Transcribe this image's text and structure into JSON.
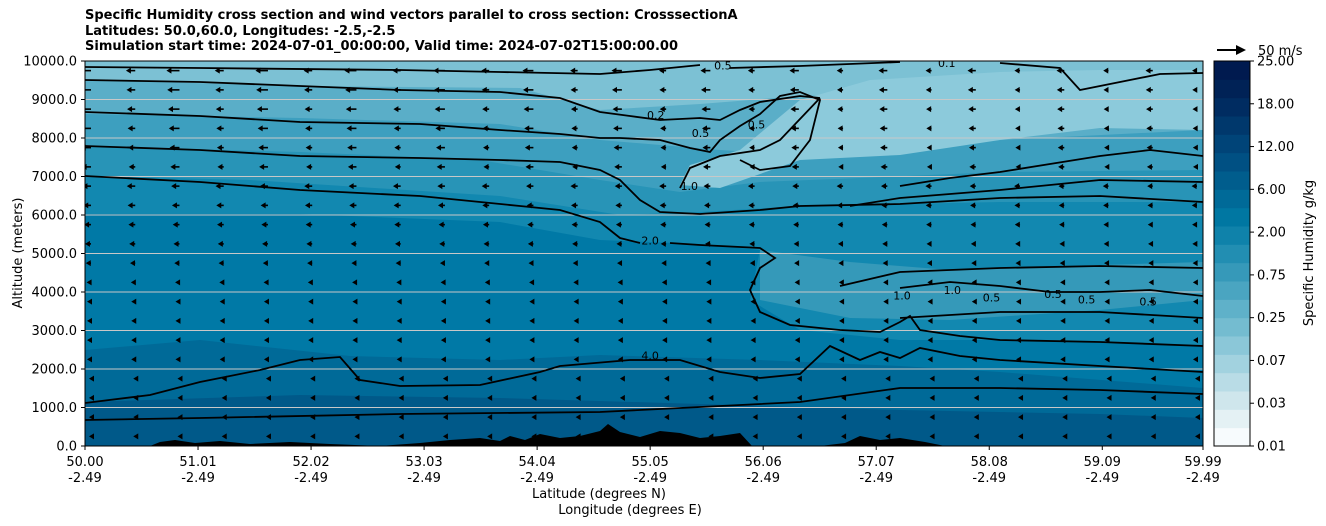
{
  "title_lines": [
    "Specific Humidity cross section and wind vectors parallel to cross section: CrosssectionA",
    "Latitudes: 50.0,60.0, Longitudes: -2.5,-2.5",
    "Simulation start time: 2024-07-01_00:00:00, Valid time: 2024-07-02T15:00:00.00"
  ],
  "chart_data": {
    "type": "heatmap",
    "ylabel": "Altitude (meters)",
    "xlabel_lines": [
      "Latitude (degrees N)",
      "Longitude (degrees E)"
    ],
    "ylim": [
      0,
      10000
    ],
    "xlim": [
      50.0,
      59.99
    ],
    "y_ticks": [
      "0.0",
      "1000.0",
      "2000.0",
      "3000.0",
      "4000.0",
      "5000.0",
      "6000.0",
      "7000.0",
      "8000.0",
      "9000.0",
      "10000.0"
    ],
    "y_tick_values": [
      0,
      1000,
      2000,
      3000,
      4000,
      5000,
      6000,
      7000,
      8000,
      9000,
      10000
    ],
    "x_ticks": [
      {
        "lat": "50.00",
        "lon": "-2.49",
        "value": 50.0
      },
      {
        "lat": "51.01",
        "lon": "-2.49",
        "value": 51.01
      },
      {
        "lat": "52.02",
        "lon": "-2.49",
        "value": 52.02
      },
      {
        "lat": "53.03",
        "lon": "-2.49",
        "value": 53.03
      },
      {
        "lat": "54.04",
        "lon": "-2.49",
        "value": 54.04
      },
      {
        "lat": "55.05",
        "lon": "-2.49",
        "value": 55.05
      },
      {
        "lat": "56.06",
        "lon": "-2.49",
        "value": 56.06
      },
      {
        "lat": "57.07",
        "lon": "-2.49",
        "value": 57.07
      },
      {
        "lat": "58.08",
        "lon": "-2.49",
        "value": 58.08
      },
      {
        "lat": "59.09",
        "lon": "-2.49",
        "value": 59.09
      },
      {
        "lat": "59.99",
        "lon": "-2.49",
        "value": 59.99
      }
    ],
    "grid": "horizontal",
    "colorbar": {
      "label": "Specific Humidity g/kg",
      "ticks": [
        "0.01",
        "0.03",
        "0.07",
        "0.25",
        "0.75",
        "2.00",
        "6.00",
        "12.00",
        "18.00",
        "25.00"
      ],
      "colors": [
        "#f7fbfd",
        "#e4f1f4",
        "#cfe6ec",
        "#b9dce6",
        "#a2d2df",
        "#8bc7d8",
        "#74bcd0",
        "#5fb1c9",
        "#4aa5c1",
        "#3699b9",
        "#228eb2",
        "#0f82aa",
        "#0077a2",
        "#006a98",
        "#005d8d",
        "#005083",
        "#004478",
        "#00386c",
        "#002c61",
        "#002256",
        "#001a4f"
      ]
    },
    "quiver_key": "50 m/s",
    "contour_labels": [
      {
        "text": "0.1",
        "lat": 57.7,
        "alt": 9850
      },
      {
        "text": "0.2",
        "lat": 55.1,
        "alt": 8490
      },
      {
        "text": "0.5",
        "lat": 55.5,
        "alt": 8020
      },
      {
        "text": "0.5",
        "lat": 56.0,
        "alt": 8250
      },
      {
        "text": "0.5",
        "lat": 55.7,
        "alt": 9780
      },
      {
        "text": "1.0",
        "lat": 55.4,
        "alt": 6650
      },
      {
        "text": "2.0",
        "lat": 55.05,
        "alt": 5230
      },
      {
        "text": "4.0",
        "lat": 55.05,
        "alt": 2250
      },
      {
        "text": "1.0",
        "lat": 57.3,
        "alt": 3800
      },
      {
        "text": "1.0",
        "lat": 57.75,
        "alt": 3950
      },
      {
        "text": "0.5",
        "lat": 58.1,
        "alt": 3750
      },
      {
        "text": "0.5",
        "lat": 58.65,
        "alt": 3850
      },
      {
        "text": "0.5",
        "lat": 58.95,
        "alt": 3700
      },
      {
        "text": "0.5",
        "lat": 59.5,
        "alt": 3650
      }
    ]
  }
}
